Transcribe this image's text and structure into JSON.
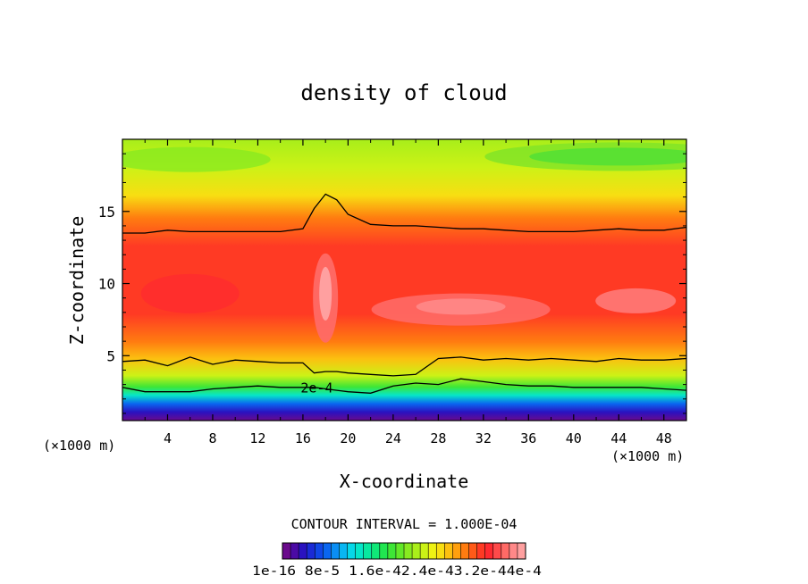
{
  "chart_data": {
    "type": "heatmap",
    "title": "density of cloud",
    "xlabel": "X-coordinate",
    "ylabel": "Z-coordinate",
    "x_unit_left": "(×1000 m)",
    "x_unit_right": "(×1000 m)",
    "xlim": [
      0,
      50
    ],
    "ylim": [
      0.5,
      20
    ],
    "x_ticks": [
      4,
      8,
      12,
      16,
      20,
      24,
      28,
      32,
      36,
      40,
      44,
      48
    ],
    "y_ticks": [
      5,
      10,
      15
    ],
    "contour_interval_label": "CONTOUR INTERVAL = 1.000E-04",
    "contour_label": "2e-4",
    "colorbar": {
      "min": 1e-16,
      "max": 0.0004,
      "labels": [
        "1e-16",
        "8e-5",
        "1.6e-4",
        "2.4e-4",
        "3.2e-4",
        "4e-4"
      ],
      "colors": [
        "#6a0a8c",
        "#4b0aa5",
        "#2a12c0",
        "#1a2ad6",
        "#1046e6",
        "#0a66f0",
        "#0a8ef4",
        "#08b6f2",
        "#06d8e8",
        "#06e6c8",
        "#08e8a0",
        "#10e878",
        "#20e650",
        "#3ee636",
        "#62e828",
        "#88ea20",
        "#aaee1a",
        "#ccf216",
        "#eef214",
        "#f8de12",
        "#fcc010",
        "#ffa00e",
        "#ff7c10",
        "#ff5a18",
        "#ff3a24",
        "#ff2a30",
        "#ff4a4a",
        "#ff6a66",
        "#ff8888",
        "#ffa0a0"
      ]
    },
    "level_isolines_z": {
      "x": [
        0,
        2,
        4,
        6,
        8,
        10,
        12,
        14,
        16,
        17,
        18,
        19,
        20,
        22,
        24,
        26,
        28,
        30,
        32,
        34,
        36,
        38,
        40,
        42,
        44,
        46,
        48,
        50
      ],
      "contour_upper_z": [
        13.5,
        13.5,
        13.7,
        13.6,
        13.6,
        13.6,
        13.6,
        13.6,
        13.8,
        15.2,
        16.2,
        15.8,
        14.8,
        14.1,
        14.0,
        14.0,
        13.9,
        13.8,
        13.8,
        13.7,
        13.6,
        13.6,
        13.6,
        13.7,
        13.8,
        13.7,
        13.7,
        13.9
      ],
      "contour_lower_z": [
        4.6,
        4.7,
        4.3,
        4.9,
        4.4,
        4.7,
        4.6,
        4.5,
        4.5,
        3.8,
        3.9,
        3.9,
        3.8,
        3.7,
        3.6,
        3.7,
        4.8,
        4.9,
        4.7,
        4.8,
        4.7,
        4.8,
        4.7,
        4.6,
        4.8,
        4.7,
        4.7,
        4.8
      ],
      "contour_2e4_z": [
        2.8,
        2.5,
        2.5,
        2.5,
        2.7,
        2.8,
        2.9,
        2.8,
        2.8,
        2.8,
        2.7,
        2.6,
        2.5,
        2.4,
        2.9,
        3.1,
        3.0,
        3.4,
        3.2,
        3.0,
        2.9,
        2.9,
        2.8,
        2.8,
        2.8,
        2.8,
        2.7,
        2.6
      ]
    }
  }
}
